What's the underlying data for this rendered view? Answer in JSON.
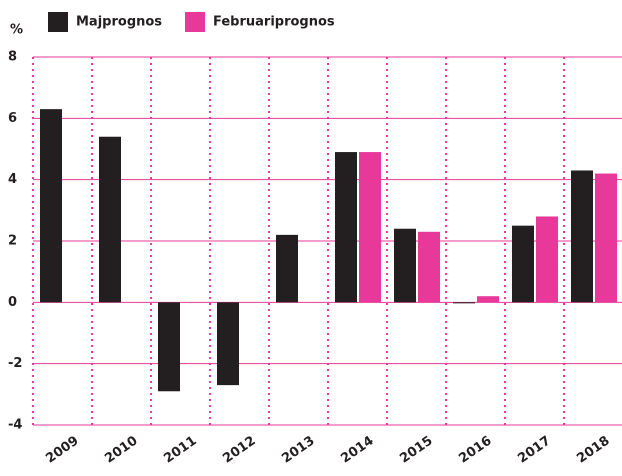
{
  "chart_data": {
    "type": "bar",
    "y_unit": "%",
    "categories": [
      "2009",
      "2010",
      "2011",
      "2012",
      "2013",
      "2014",
      "2015",
      "2016",
      "2017",
      "2018"
    ],
    "series": [
      {
        "name": "Majprognos",
        "color": "#231f20",
        "values": [
          6.3,
          5.4,
          -2.9,
          -2.7,
          2.2,
          4.9,
          2.4,
          0.0,
          2.5,
          4.3
        ]
      },
      {
        "name": "Februariprognos",
        "color": "#e8399a",
        "values": [
          null,
          null,
          null,
          null,
          null,
          4.9,
          2.3,
          0.2,
          2.8,
          4.2
        ]
      }
    ],
    "ylim": [
      -4,
      8
    ],
    "yticks": [
      -4,
      -2,
      0,
      2,
      4,
      6,
      8
    ],
    "grid": true,
    "grid_color": "#e8399a"
  }
}
